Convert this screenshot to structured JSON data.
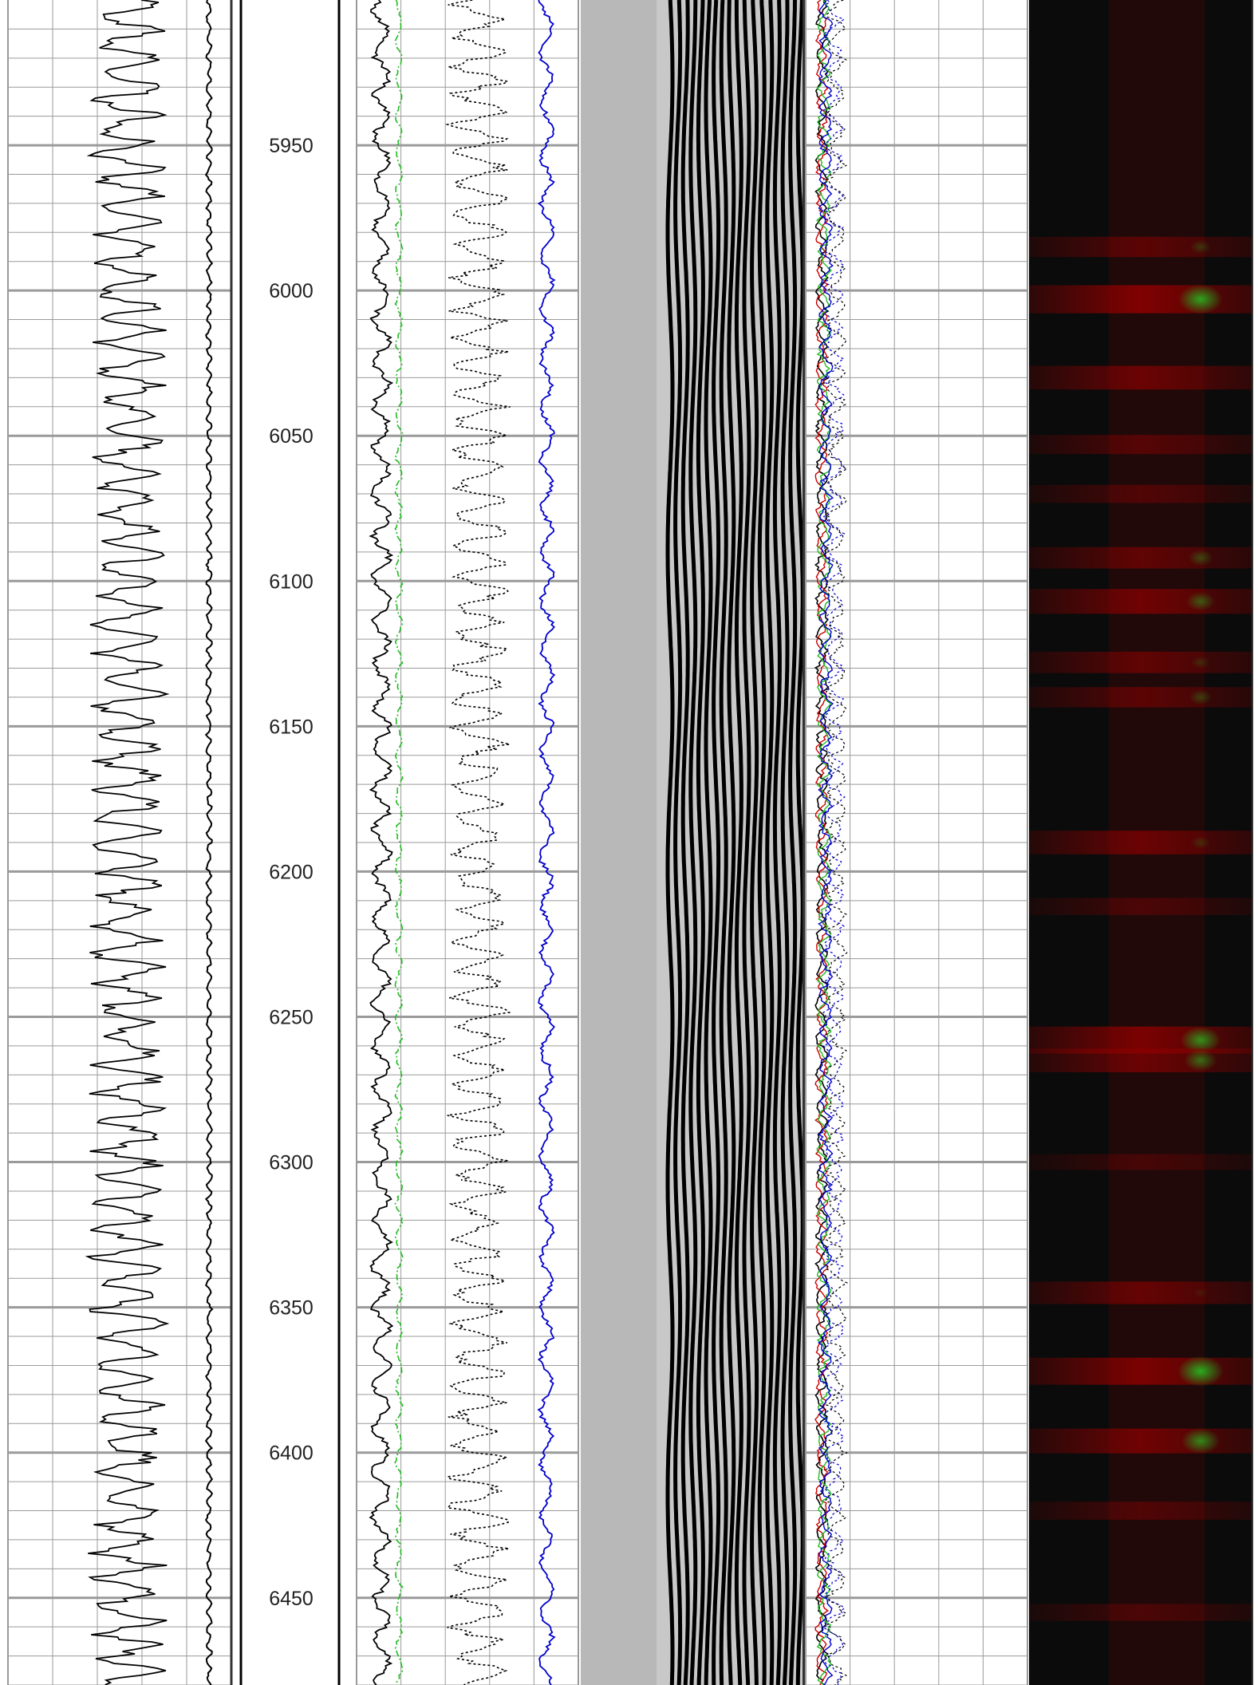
{
  "chart_data": {
    "type": "line",
    "title": "",
    "depth_range": [
      5900,
      6480
    ],
    "depth_ticks": [
      "5950",
      "6000",
      "6050",
      "6100",
      "6150",
      "6200",
      "6250",
      "6300",
      "6350",
      "6400",
      "6450"
    ],
    "tracks": [
      {
        "id": "track-1",
        "content": "single black curve",
        "grid": true
      },
      {
        "id": "depth-track",
        "content": "depth labels"
      },
      {
        "id": "track-2",
        "content": "black, green dash-dot, black dotted and blue curves",
        "grid": true
      },
      {
        "id": "track-3",
        "content": "variable-density waveform display"
      },
      {
        "id": "track-4",
        "content": "black, red, green and blue overlapping curves with dotted curves",
        "grid": true
      },
      {
        "id": "track-5",
        "content": "red/green intensity image on black"
      }
    ],
    "colors": {
      "background": "#ffffff",
      "grid": "#9a9a9a",
      "curve_black": "#000000",
      "curve_green": "#22bb22",
      "curve_blue": "#0000cc",
      "curve_red": "#cc0000",
      "image_background": "#0b0b0b",
      "image_red": "#8a0000",
      "image_green": "#22c022"
    },
    "heat_bands": [
      {
        "depth": 5985,
        "red": 0.55,
        "green": 0.25
      },
      {
        "depth": 6003,
        "red": 0.9,
        "green": 0.85
      },
      {
        "depth": 6030,
        "red": 0.7,
        "green": 0.0
      },
      {
        "depth": 6053,
        "red": 0.5,
        "green": 0.0
      },
      {
        "depth": 6070,
        "red": 0.45,
        "green": 0.0
      },
      {
        "depth": 6092,
        "red": 0.6,
        "green": 0.35
      },
      {
        "depth": 6107,
        "red": 0.75,
        "green": 0.45
      },
      {
        "depth": 6128,
        "red": 0.6,
        "green": 0.2
      },
      {
        "depth": 6140,
        "red": 0.55,
        "green": 0.3
      },
      {
        "depth": 6190,
        "red": 0.7,
        "green": 0.2
      },
      {
        "depth": 6212,
        "red": 0.4,
        "green": 0.0
      },
      {
        "depth": 6258,
        "red": 0.85,
        "green": 0.75
      },
      {
        "depth": 6265,
        "red": 0.7,
        "green": 0.55
      },
      {
        "depth": 6300,
        "red": 0.35,
        "green": 0.0
      },
      {
        "depth": 6345,
        "red": 0.65,
        "green": 0.1
      },
      {
        "depth": 6372,
        "red": 0.85,
        "green": 0.9
      },
      {
        "depth": 6396,
        "red": 0.75,
        "green": 0.7
      },
      {
        "depth": 6420,
        "red": 0.45,
        "green": 0.0
      },
      {
        "depth": 6455,
        "red": 0.4,
        "green": 0.0
      }
    ]
  }
}
